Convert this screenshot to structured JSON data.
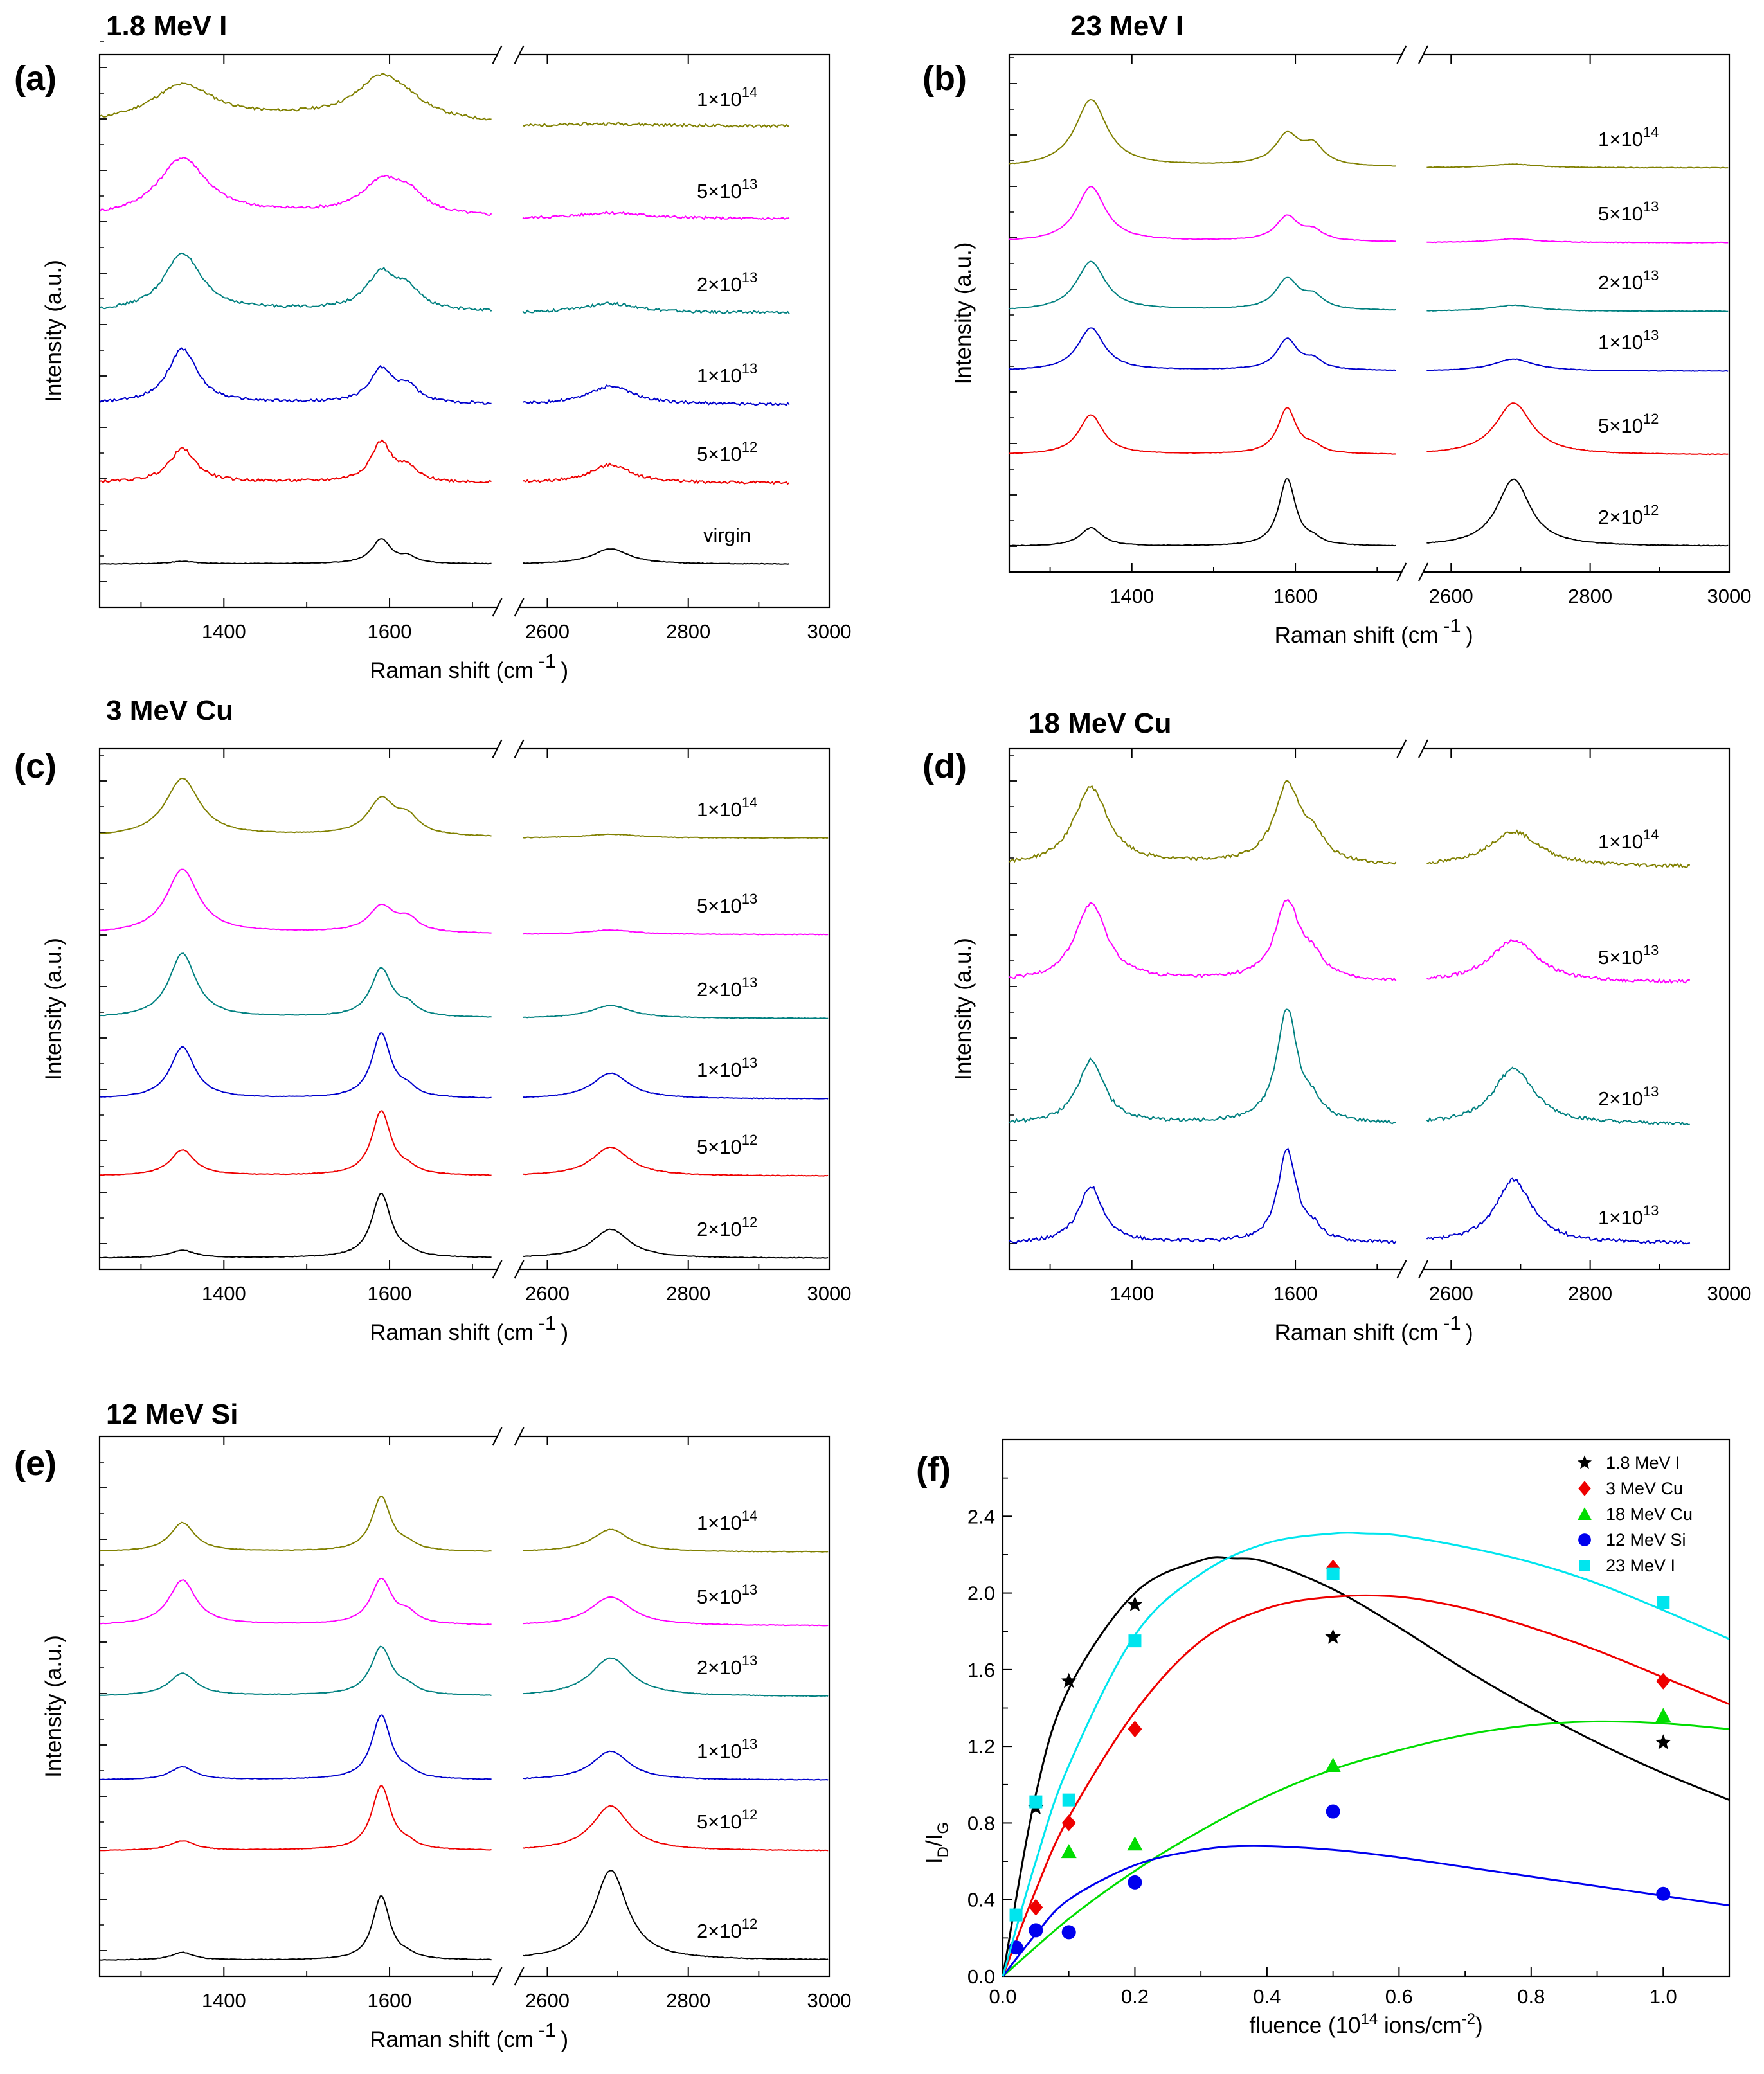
{
  "figure": {
    "panels": [
      {
        "label": "(a)",
        "title": "1.8 MeV I",
        "xlabel": "Raman shift (cm-1)",
        "ylabel": "Intensity (a.u.)",
        "x_ticks": [
          "1400",
          "1600",
          "2600",
          "2800",
          "3000"
        ],
        "traces": [
          {
            "fluence": "1×10",
            "exp": "14",
            "color": "#808000",
            "D": 0.6,
            "G": 0.65,
            "Dp": 0.15,
            "D2": 0.04,
            "noise": 0.045,
            "broad": 2.6
          },
          {
            "fluence": "5×10",
            "exp": "13",
            "color": "#ff00ff",
            "D": 0.95,
            "G": 0.5,
            "Dp": 0.3,
            "D2": 0.1,
            "noise": 0.045,
            "broad": 2.0
          },
          {
            "fluence": "2×10",
            "exp": "13",
            "color": "#008080",
            "D": 0.95,
            "G": 0.6,
            "Dp": 0.3,
            "D2": 0.15,
            "noise": 0.045,
            "broad": 1.5
          },
          {
            "fluence": "1×10",
            "exp": "13",
            "color": "#0000cc",
            "D": 0.9,
            "G": 0.55,
            "Dp": 0.25,
            "D2": 0.3,
            "noise": 0.045,
            "broad": 1.2
          },
          {
            "fluence": "5×10",
            "exp": "12",
            "color": "#ee0000",
            "D": 0.55,
            "G": 0.65,
            "Dp": 0.2,
            "D2": 0.3,
            "noise": 0.045,
            "broad": 1.1
          },
          {
            "fluence": "virgin",
            "exp": "",
            "color": "#000000",
            "D": 0.04,
            "G": 0.4,
            "Dp": 0.1,
            "D2": 0.25,
            "noise": 0.01,
            "broad": 1.0
          }
        ]
      },
      {
        "label": "(b)",
        "title": "23 MeV I",
        "xlabel": "Raman shift (cm-1)",
        "ylabel": "Intensity (a.u.)",
        "x_ticks": [
          "1400",
          "1600",
          "2600",
          "2800",
          "3000"
        ],
        "traces": [
          {
            "fluence": "1×10",
            "exp": "14",
            "color": "#808000",
            "D": 1.1,
            "G": 0.5,
            "Dp": 0.3,
            "D2": 0.06,
            "noise": 0.01,
            "broad": 1.3
          },
          {
            "fluence": "5×10",
            "exp": "13",
            "color": "#ff00ff",
            "D": 0.9,
            "G": 0.4,
            "Dp": 0.15,
            "D2": 0.06,
            "noise": 0.01,
            "broad": 1.2
          },
          {
            "fluence": "2×10",
            "exp": "13",
            "color": "#008080",
            "D": 0.8,
            "G": 0.5,
            "Dp": 0.2,
            "D2": 0.1,
            "noise": 0.01,
            "broad": 1.2
          },
          {
            "fluence": "1×10",
            "exp": "13",
            "color": "#0000cc",
            "D": 0.7,
            "G": 0.5,
            "Dp": 0.15,
            "D2": 0.2,
            "noise": 0.01,
            "broad": 1.1
          },
          {
            "fluence": "5×10",
            "exp": "12",
            "color": "#ee0000",
            "D": 0.65,
            "G": 0.75,
            "Dp": 0.1,
            "D2": 0.85,
            "noise": 0.01,
            "broad": 1.0
          },
          {
            "fluence": "2×10",
            "exp": "12",
            "color": "#000000",
            "D": 0.3,
            "G": 1.1,
            "Dp": 0.08,
            "D2": 1.1,
            "noise": 0.01,
            "broad": 0.9
          }
        ]
      },
      {
        "label": "(c)",
        "title": "3 MeV Cu",
        "xlabel": "Raman shift (cm-1)",
        "ylabel": "Intensity (a.u.)",
        "x_ticks": [
          "1400",
          "1600",
          "2600",
          "2800",
          "3000"
        ],
        "traces": [
          {
            "fluence": "1×10",
            "exp": "14",
            "color": "#808000",
            "D": 0.9,
            "G": 0.55,
            "Dp": 0.25,
            "D2": 0.06,
            "noise": 0.01,
            "broad": 1.4
          },
          {
            "fluence": "5×10",
            "exp": "13",
            "color": "#ff00ff",
            "D": 1.0,
            "G": 0.4,
            "Dp": 0.2,
            "D2": 0.07,
            "noise": 0.01,
            "broad": 1.3
          },
          {
            "fluence": "2×10",
            "exp": "13",
            "color": "#008080",
            "D": 1.0,
            "G": 0.75,
            "Dp": 0.15,
            "D2": 0.2,
            "noise": 0.01,
            "broad": 1.1
          },
          {
            "fluence": "1×10",
            "exp": "13",
            "color": "#0000cc",
            "D": 0.8,
            "G": 1.0,
            "Dp": 0.12,
            "D2": 0.4,
            "noise": 0.01,
            "broad": 1.0
          },
          {
            "fluence": "5×10",
            "exp": "12",
            "color": "#ee0000",
            "D": 0.4,
            "G": 1.0,
            "Dp": 0.08,
            "D2": 0.45,
            "noise": 0.01,
            "broad": 1.0
          },
          {
            "fluence": "2×10",
            "exp": "12",
            "color": "#000000",
            "D": 0.12,
            "G": 1.0,
            "Dp": 0.05,
            "D2": 0.45,
            "noise": 0.01,
            "broad": 1.0
          }
        ]
      },
      {
        "label": "(d)",
        "title": "18 MeV Cu",
        "xlabel": "Raman shift (cm-1)",
        "ylabel": "Intensity (a.u.)",
        "x_ticks": [
          "1400",
          "1600",
          "2600",
          "2800",
          "3000"
        ],
        "traces": [
          {
            "fluence": "1×10",
            "exp": "14",
            "color": "#808000",
            "D": 1.1,
            "G": 1.1,
            "Dp": 0.3,
            "D2": 0.5,
            "noise": 0.05,
            "broad": 1.4
          },
          {
            "fluence": "5×10",
            "exp": "13",
            "color": "#ff00ff",
            "D": 1.1,
            "G": 1.1,
            "Dp": 0.25,
            "D2": 0.6,
            "noise": 0.05,
            "broad": 1.3
          },
          {
            "fluence": "2×10",
            "exp": "13",
            "color": "#008080",
            "D": 0.9,
            "G": 1.6,
            "Dp": 0.2,
            "D2": 0.8,
            "noise": 0.05,
            "broad": 1.1
          },
          {
            "fluence": "1×10",
            "exp": "13",
            "color": "#0000cc",
            "D": 0.8,
            "G": 1.3,
            "Dp": 0.15,
            "D2": 0.9,
            "noise": 0.05,
            "broad": 1.0
          }
        ]
      },
      {
        "label": "(e)",
        "title": "12 MeV Si",
        "xlabel": "Raman shift (cm-1)",
        "ylabel": "Intensity (a.u.)",
        "x_ticks": [
          "1400",
          "1600",
          "2600",
          "2800",
          "3000"
        ],
        "traces": [
          {
            "fluence": "1×10",
            "exp": "14",
            "color": "#808000",
            "D": 0.45,
            "G": 0.85,
            "Dp": 0.08,
            "D2": 0.35,
            "noise": 0.01,
            "broad": 1.0
          },
          {
            "fluence": "5×10",
            "exp": "13",
            "color": "#ff00ff",
            "D": 0.7,
            "G": 0.7,
            "Dp": 0.15,
            "D2": 0.45,
            "noise": 0.01,
            "broad": 1.1
          },
          {
            "fluence": "2×10",
            "exp": "13",
            "color": "#008080",
            "D": 0.35,
            "G": 0.75,
            "Dp": 0.1,
            "D2": 0.6,
            "noise": 0.01,
            "broad": 1.1
          },
          {
            "fluence": "1×10",
            "exp": "13",
            "color": "#0000cc",
            "D": 0.2,
            "G": 1.0,
            "Dp": 0.08,
            "D2": 0.45,
            "noise": 0.01,
            "broad": 1.0
          },
          {
            "fluence": "5×10",
            "exp": "12",
            "color": "#ee0000",
            "D": 0.15,
            "G": 1.0,
            "Dp": 0.07,
            "D2": 0.7,
            "noise": 0.01,
            "broad": 1.0
          },
          {
            "fluence": "2×10",
            "exp": "12",
            "color": "#000000",
            "D": 0.12,
            "G": 1.0,
            "Dp": 0.05,
            "D2": 1.4,
            "noise": 0.01,
            "broad": 0.9
          }
        ]
      }
    ],
    "panel_f": {
      "label": "(f)",
      "xlabel": "fluence (10",
      "xlabel_exp": "14",
      "xlabel_tail": " ions/cm",
      "xlabel_exp2": "-2",
      "xlabel_end": ")",
      "ylabel_I": "I",
      "ylabel_D": "D",
      "ylabel_slash": "/I",
      "ylabel_G": "G"
    }
  },
  "chart_data": [
    {
      "type": "line",
      "title": "1.8 MeV I",
      "xlabel": "Raman shift (cm-1)",
      "ylabel": "Intensity (a.u.)",
      "x_range": [
        1250,
        3000
      ],
      "axis_break": [
        1730,
        2560
      ],
      "series": [
        "1×10^14",
        "5×10^13",
        "2×10^13",
        "1×10^13",
        "5×10^12",
        "virgin"
      ],
      "peaks_cm-1": {
        "D": 1350,
        "G": 1590,
        "D'": 1620,
        "2D": 2690
      }
    },
    {
      "type": "line",
      "title": "23 MeV I",
      "xlabel": "Raman shift (cm-1)",
      "ylabel": "Intensity (a.u.)",
      "x_range": [
        1250,
        3000
      ],
      "axis_break": [
        1730,
        2560
      ],
      "series": [
        "1×10^14",
        "5×10^13",
        "2×10^13",
        "1×10^13",
        "5×10^12",
        "2×10^12"
      ]
    },
    {
      "type": "line",
      "title": "3 MeV Cu",
      "xlabel": "Raman shift (cm-1)",
      "ylabel": "Intensity (a.u.)",
      "x_range": [
        1250,
        3000
      ],
      "axis_break": [
        1730,
        2560
      ],
      "series": [
        "1×10^14",
        "5×10^13",
        "2×10^13",
        "1×10^13",
        "5×10^12",
        "2×10^12"
      ]
    },
    {
      "type": "line",
      "title": "18 MeV Cu",
      "xlabel": "Raman shift (cm-1)",
      "ylabel": "Intensity (a.u.)",
      "x_range": [
        1250,
        3000
      ],
      "axis_break": [
        1730,
        2560
      ],
      "series": [
        "1×10^14",
        "5×10^13",
        "2×10^13",
        "1×10^13"
      ]
    },
    {
      "type": "line",
      "title": "12 MeV Si",
      "xlabel": "Raman shift (cm-1)",
      "ylabel": "Intensity (a.u.)",
      "x_range": [
        1250,
        3000
      ],
      "axis_break": [
        1730,
        2560
      ],
      "series": [
        "1×10^14",
        "5×10^13",
        "2×10^13",
        "1×10^13",
        "5×10^12",
        "2×10^12"
      ]
    },
    {
      "type": "scatter",
      "title": "(f)",
      "xlabel": "fluence (10^14 ions/cm^-2)",
      "ylabel": "ID/IG",
      "xlim": [
        0.0,
        1.1
      ],
      "ylim": [
        0.0,
        2.8
      ],
      "x_ticks": [
        "0.0",
        "0.2",
        "0.4",
        "0.6",
        "0.8",
        "1.0"
      ],
      "y_ticks": [
        "0.0",
        "0.4",
        "0.8",
        "1.2",
        "1.6",
        "2.0",
        "2.4"
      ],
      "legend_position": "top-right",
      "series": [
        {
          "name": "1.8 MeV I",
          "color": "#000000",
          "marker": "star",
          "points": [
            [
              0.05,
              0.88
            ],
            [
              0.1,
              1.54
            ],
            [
              0.2,
              1.94
            ],
            [
              0.5,
              1.77
            ],
            [
              1.0,
              1.22
            ]
          ],
          "fit": [
            [
              0.0,
              0.0
            ],
            [
              0.05,
              0.95
            ],
            [
              0.1,
              1.5
            ],
            [
              0.2,
              2.0
            ],
            [
              0.3,
              2.17
            ],
            [
              0.35,
              2.18
            ],
            [
              0.4,
              2.16
            ],
            [
              0.5,
              2.02
            ],
            [
              0.6,
              1.82
            ],
            [
              0.7,
              1.6
            ],
            [
              0.8,
              1.4
            ],
            [
              0.9,
              1.22
            ],
            [
              1.0,
              1.06
            ],
            [
              1.1,
              0.92
            ]
          ]
        },
        {
          "name": "3 MeV Cu",
          "color": "#ee0000",
          "marker": "diamond",
          "points": [
            [
              0.05,
              0.36
            ],
            [
              0.1,
              0.8
            ],
            [
              0.2,
              1.29
            ],
            [
              0.5,
              2.13
            ],
            [
              1.0,
              1.54
            ]
          ],
          "fit": [
            [
              0.0,
              0.0
            ],
            [
              0.05,
              0.45
            ],
            [
              0.1,
              0.83
            ],
            [
              0.2,
              1.38
            ],
            [
              0.3,
              1.75
            ],
            [
              0.4,
              1.92
            ],
            [
              0.5,
              1.98
            ],
            [
              0.6,
              1.98
            ],
            [
              0.7,
              1.92
            ],
            [
              0.8,
              1.82
            ],
            [
              0.9,
              1.7
            ],
            [
              1.0,
              1.56
            ],
            [
              1.1,
              1.42
            ]
          ]
        },
        {
          "name": "18 MeV Cu",
          "color": "#00dd00",
          "marker": "triangle",
          "points": [
            [
              0.1,
              0.65
            ],
            [
              0.2,
              0.69
            ],
            [
              0.5,
              1.1
            ],
            [
              1.0,
              1.36
            ]
          ],
          "fit": [
            [
              0.0,
              0.0
            ],
            [
              0.1,
              0.3
            ],
            [
              0.2,
              0.55
            ],
            [
              0.3,
              0.76
            ],
            [
              0.4,
              0.94
            ],
            [
              0.5,
              1.08
            ],
            [
              0.6,
              1.18
            ],
            [
              0.7,
              1.26
            ],
            [
              0.8,
              1.31
            ],
            [
              0.9,
              1.33
            ],
            [
              1.0,
              1.32
            ],
            [
              1.1,
              1.29
            ]
          ]
        },
        {
          "name": "12 MeV Si",
          "color": "#0000ee",
          "marker": "circle",
          "points": [
            [
              0.02,
              0.15
            ],
            [
              0.05,
              0.24
            ],
            [
              0.1,
              0.23
            ],
            [
              0.2,
              0.49
            ],
            [
              0.5,
              0.86
            ],
            [
              1.0,
              0.43
            ]
          ],
          "fit": [
            [
              0.0,
              0.0
            ],
            [
              0.05,
              0.22
            ],
            [
              0.1,
              0.4
            ],
            [
              0.2,
              0.58
            ],
            [
              0.3,
              0.66
            ],
            [
              0.38,
              0.68
            ],
            [
              0.5,
              0.66
            ],
            [
              0.6,
              0.62
            ],
            [
              0.7,
              0.57
            ],
            [
              0.8,
              0.52
            ],
            [
              0.9,
              0.47
            ],
            [
              1.0,
              0.42
            ],
            [
              1.1,
              0.37
            ]
          ]
        },
        {
          "name": "23 MeV I",
          "color": "#00e5ee",
          "marker": "square",
          "points": [
            [
              0.02,
              0.32
            ],
            [
              0.05,
              0.91
            ],
            [
              0.1,
              0.92
            ],
            [
              0.2,
              1.75
            ],
            [
              0.5,
              2.1
            ],
            [
              1.0,
              1.95
            ]
          ],
          "fit": [
            [
              0.0,
              0.0
            ],
            [
              0.05,
              0.6
            ],
            [
              0.1,
              1.1
            ],
            [
              0.2,
              1.78
            ],
            [
              0.3,
              2.1
            ],
            [
              0.4,
              2.26
            ],
            [
              0.5,
              2.31
            ],
            [
              0.55,
              2.31
            ],
            [
              0.6,
              2.3
            ],
            [
              0.7,
              2.24
            ],
            [
              0.8,
              2.16
            ],
            [
              0.9,
              2.05
            ],
            [
              1.0,
              1.91
            ],
            [
              1.1,
              1.76
            ]
          ]
        }
      ]
    }
  ]
}
